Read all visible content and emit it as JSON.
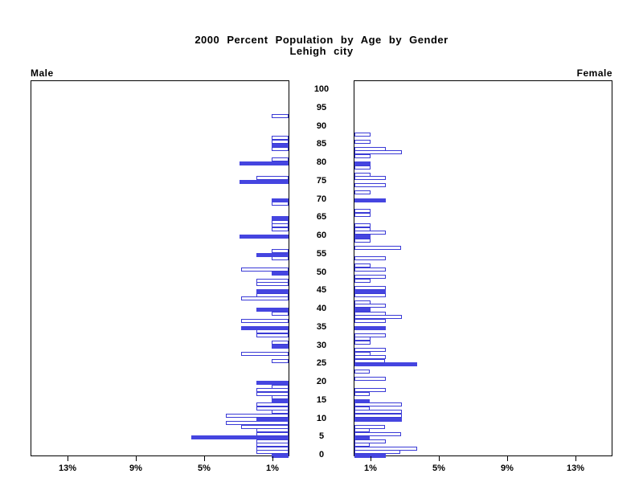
{
  "title": {
    "line1": "2000 Percent Population by Age by Gender",
    "line2": "Lehigh city"
  },
  "panel_labels": {
    "male": "Male",
    "female": "Female"
  },
  "colors": {
    "bar_fill": "#4545e0",
    "bar_outline": "#3a3ad6",
    "axis": "#000000",
    "background": "#ffffff"
  },
  "chart_data": {
    "type": "bar",
    "variant": "population-pyramid",
    "title": "2000 Percent Population by Age by Gender",
    "subtitle": "Lehigh city",
    "unit": "percent of population",
    "age_range": [
      0,
      100
    ],
    "age_axis_ticks": [
      0,
      5,
      10,
      15,
      20,
      25,
      30,
      35,
      40,
      45,
      50,
      55,
      60,
      65,
      70,
      75,
      80,
      85,
      90,
      95,
      100
    ],
    "pct_axis_ticks": [
      1,
      5,
      9,
      13
    ],
    "pct_tick_suffix": "%",
    "xlim": [
      0,
      15.2
    ],
    "grid": false,
    "highlight_rule": "bars for ages divisible by 5 are filled solid; other ages are outlined",
    "series": [
      {
        "name": "Male",
        "side": "left",
        "values": [
          1.0,
          1.9,
          1.9,
          1.9,
          1.9,
          5.7,
          1.9,
          1.9,
          2.8,
          3.7,
          1.9,
          3.7,
          1.0,
          1.9,
          1.9,
          1.0,
          1.0,
          1.9,
          1.9,
          1.0,
          1.9,
          0,
          0,
          0,
          0,
          0,
          1.0,
          0,
          2.8,
          0,
          1.0,
          1.0,
          0,
          1.9,
          1.9,
          2.8,
          0,
          2.8,
          0,
          1.0,
          1.9,
          0,
          0,
          2.8,
          1.9,
          1.9,
          0,
          1.9,
          1.9,
          0,
          1.0,
          2.8,
          0,
          0,
          1.0,
          1.9,
          1.0,
          0,
          0,
          0,
          2.9,
          0,
          1.0,
          1.0,
          1.0,
          1.0,
          0,
          0,
          0,
          1.0,
          1.0,
          0,
          0,
          0,
          0,
          2.9,
          1.9,
          0,
          0,
          0,
          2.9,
          1.0,
          0,
          0,
          1.0,
          1.0,
          1.0,
          1.0,
          0,
          0,
          0,
          0,
          0,
          1.0,
          0,
          0,
          0,
          0,
          0,
          0,
          0
        ]
      },
      {
        "name": "Female",
        "side": "right",
        "values": [
          1.85,
          2.7,
          3.7,
          0.9,
          1.85,
          0.9,
          2.75,
          0.9,
          1.8,
          0,
          2.8,
          2.8,
          2.8,
          0.9,
          2.8,
          0.9,
          0,
          0.9,
          1.85,
          0,
          0,
          1.85,
          0,
          0.9,
          0,
          3.7,
          1.8,
          1.85,
          0.94,
          1.85,
          0,
          0.94,
          0.94,
          1.85,
          0,
          1.85,
          0,
          1.85,
          2.78,
          1.85,
          0.94,
          1.85,
          0.94,
          0,
          1.85,
          1.85,
          1.85,
          0,
          0.94,
          1.85,
          0,
          1.85,
          0.94,
          0,
          1.85,
          0,
          0,
          2.75,
          0,
          0.94,
          0.94,
          1.85,
          0.94,
          0.94,
          0,
          0,
          0.94,
          0.94,
          0,
          0,
          1.85,
          0,
          0.94,
          0,
          1.85,
          0,
          1.85,
          0.94,
          0,
          0.94,
          0.94,
          0,
          0.94,
          2.78,
          1.85,
          0,
          0.94,
          0,
          0.94,
          0,
          0,
          0,
          0,
          0,
          0,
          0,
          0,
          0,
          0,
          0,
          0
        ]
      }
    ]
  }
}
